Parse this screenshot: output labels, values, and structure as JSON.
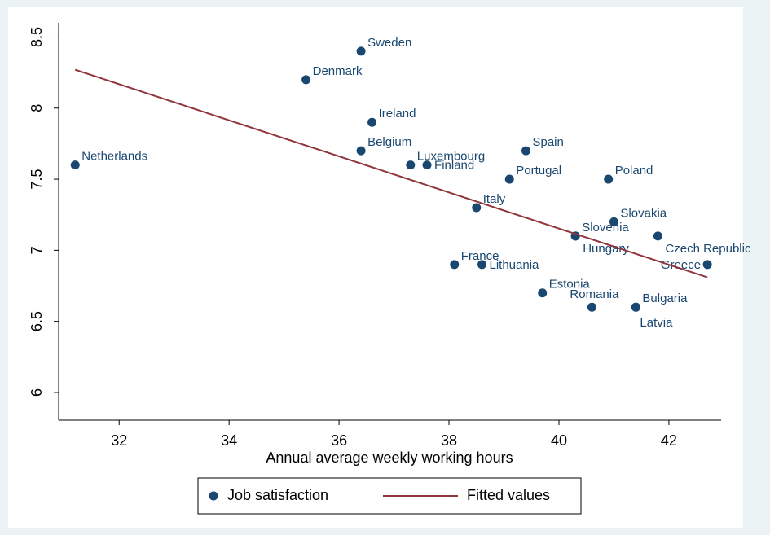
{
  "chart_data": {
    "type": "scatter",
    "x_label": "Annual average weekly working hours",
    "xlim": [
      30.9,
      42.95
    ],
    "ylim": [
      5.805,
      8.6
    ],
    "xticks": [
      32,
      34,
      36,
      38,
      40,
      42
    ],
    "yticks": [
      6,
      6.5,
      7,
      7.5,
      8,
      8.5
    ],
    "grid": false,
    "legend": "bottom",
    "series": [
      {
        "name": "Job satisfaction",
        "type": "scatter",
        "color": "#1a476f",
        "labels": [
          "Netherlands",
          "Sweden",
          "Denmark",
          "Ireland",
          "Belgium",
          "Luxembourg",
          "Finland",
          "Spain",
          "Portugal",
          "Poland",
          "Italy",
          "Slovakia",
          "Slovenia",
          "Hungary",
          "Czech Republic",
          "Greece",
          "France",
          "Lithuania",
          "Estonia",
          "Romania",
          "Bulgaria",
          "Latvia"
        ],
        "x": [
          31.2,
          36.4,
          35.4,
          36.6,
          36.4,
          37.3,
          37.6,
          39.4,
          39.1,
          40.9,
          38.5,
          41.0,
          40.3,
          40.3,
          41.8,
          42.7,
          38.1,
          38.6,
          39.7,
          40.6,
          41.4,
          41.4
        ],
        "values": [
          7.6,
          8.4,
          8.2,
          7.9,
          7.7,
          7.6,
          7.6,
          7.7,
          7.5,
          7.5,
          7.3,
          7.2,
          7.1,
          7.1,
          7.1,
          6.9,
          6.9,
          6.9,
          6.7,
          6.6,
          6.6,
          6.6
        ]
      },
      {
        "name": "Fitted values",
        "type": "line",
        "color": "#90353b",
        "x": [
          31.2,
          42.7
        ],
        "values": [
          8.27,
          6.81
        ]
      }
    ]
  }
}
